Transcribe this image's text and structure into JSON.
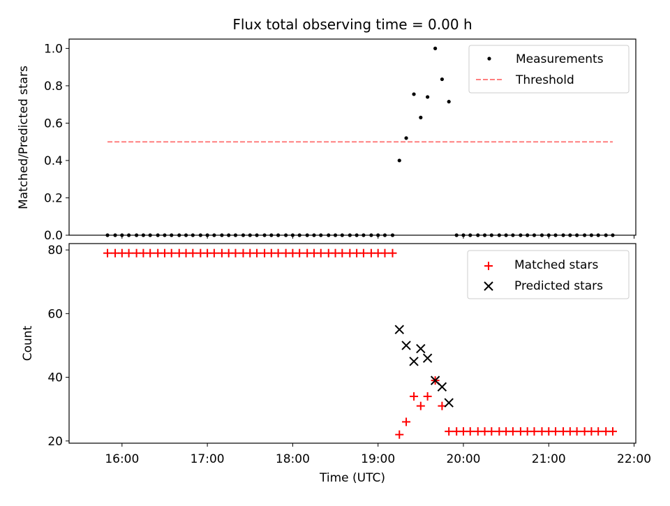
{
  "chart_data": [
    {
      "type": "scatter",
      "title": "Flux total observing time = 0.00 h",
      "xlabel": "",
      "ylabel": "Matched/Predicted stars",
      "ylim": [
        0,
        1.05
      ],
      "yticks": [
        "0.0",
        "0.2",
        "0.4",
        "0.6",
        "0.8",
        "1.0"
      ],
      "ytick_values": [
        0,
        0.2,
        0.4,
        0.6,
        0.8,
        1.0
      ],
      "legend_position": "top-right",
      "series": [
        {
          "name": "Measurements",
          "marker": "dot",
          "color": "#000000",
          "x": [
            15.83,
            15.92,
            16.0,
            16.08,
            16.17,
            16.25,
            16.33,
            16.42,
            16.5,
            16.58,
            16.67,
            16.75,
            16.83,
            16.92,
            17.0,
            17.08,
            17.17,
            17.25,
            17.33,
            17.42,
            17.5,
            17.58,
            17.67,
            17.75,
            17.83,
            17.92,
            18.0,
            18.08,
            18.17,
            18.25,
            18.33,
            18.42,
            18.5,
            18.58,
            18.67,
            18.75,
            18.83,
            18.92,
            19.0,
            19.08,
            19.17,
            19.25,
            19.33,
            19.42,
            19.5,
            19.58,
            19.67,
            19.75,
            19.83,
            19.92,
            20.0,
            20.08,
            20.17,
            20.25,
            20.33,
            20.42,
            20.5,
            20.58,
            20.67,
            20.75,
            20.83,
            20.92,
            21.0,
            21.08,
            21.17,
            21.25,
            21.33,
            21.42,
            21.5,
            21.58,
            21.67,
            21.75
          ],
          "y": [
            0,
            0,
            0,
            0,
            0,
            0,
            0,
            0,
            0,
            0,
            0,
            0,
            0,
            0,
            0,
            0,
            0,
            0,
            0,
            0,
            0,
            0,
            0,
            0,
            0,
            0,
            0,
            0,
            0,
            0,
            0,
            0,
            0,
            0,
            0,
            0,
            0,
            0,
            0,
            0,
            0,
            0.4,
            0.52,
            0.755,
            0.63,
            0.74,
            1.0,
            0.835,
            0.715,
            0,
            0,
            0,
            0,
            0,
            0,
            0,
            0,
            0,
            0,
            0,
            0,
            0,
            0,
            0,
            0,
            0,
            0,
            0,
            0,
            0,
            0,
            0
          ]
        },
        {
          "name": "Threshold",
          "marker": "dashed-line",
          "color": "#ff7f7f",
          "x": [
            15.83,
            21.75
          ],
          "y": [
            0.5,
            0.5
          ]
        }
      ]
    },
    {
      "type": "scatter",
      "title": "",
      "xlabel": "Time (UTC)",
      "ylabel": "Count",
      "ylim": [
        19.3,
        82
      ],
      "yticks": [
        "20",
        "40",
        "60",
        "80"
      ],
      "ytick_values": [
        20,
        40,
        60,
        80
      ],
      "xlim": [
        15.38,
        22.02
      ],
      "xticks": [
        "16:00",
        "17:00",
        "18:00",
        "19:00",
        "20:00",
        "21:00",
        "22:00"
      ],
      "xtick_values": [
        16,
        17,
        18,
        19,
        20,
        21,
        22
      ],
      "legend_position": "top-right",
      "series": [
        {
          "name": "Matched stars",
          "marker": "plus",
          "color": "#ff0000",
          "x": [
            15.83,
            15.92,
            16.0,
            16.08,
            16.17,
            16.25,
            16.33,
            16.42,
            16.5,
            16.58,
            16.67,
            16.75,
            16.83,
            16.92,
            17.0,
            17.08,
            17.17,
            17.25,
            17.33,
            17.42,
            17.5,
            17.58,
            17.67,
            17.75,
            17.83,
            17.92,
            18.0,
            18.08,
            18.17,
            18.25,
            18.33,
            18.42,
            18.5,
            18.58,
            18.67,
            18.75,
            18.83,
            18.92,
            19.0,
            19.08,
            19.17,
            19.25,
            19.33,
            19.42,
            19.5,
            19.58,
            19.67,
            19.75,
            19.83,
            19.92,
            20.0,
            20.08,
            20.17,
            20.25,
            20.33,
            20.42,
            20.5,
            20.58,
            20.67,
            20.75,
            20.83,
            20.92,
            21.0,
            21.08,
            21.17,
            21.25,
            21.33,
            21.42,
            21.5,
            21.58,
            21.67,
            21.75
          ],
          "y": [
            79,
            79,
            79,
            79,
            79,
            79,
            79,
            79,
            79,
            79,
            79,
            79,
            79,
            79,
            79,
            79,
            79,
            79,
            79,
            79,
            79,
            79,
            79,
            79,
            79,
            79,
            79,
            79,
            79,
            79,
            79,
            79,
            79,
            79,
            79,
            79,
            79,
            79,
            79,
            79,
            79,
            22,
            26,
            34,
            31,
            34,
            39,
            31,
            23,
            23,
            23,
            23,
            23,
            23,
            23,
            23,
            23,
            23,
            23,
            23,
            23,
            23,
            23,
            23,
            23,
            23,
            23,
            23,
            23,
            23,
            23,
            23
          ]
        },
        {
          "name": "Predicted stars",
          "marker": "x",
          "color": "#000000",
          "x": [
            19.25,
            19.33,
            19.42,
            19.5,
            19.58,
            19.67,
            19.75,
            19.83
          ],
          "y": [
            55,
            50,
            45,
            49,
            46,
            39,
            37,
            32
          ]
        }
      ]
    }
  ]
}
